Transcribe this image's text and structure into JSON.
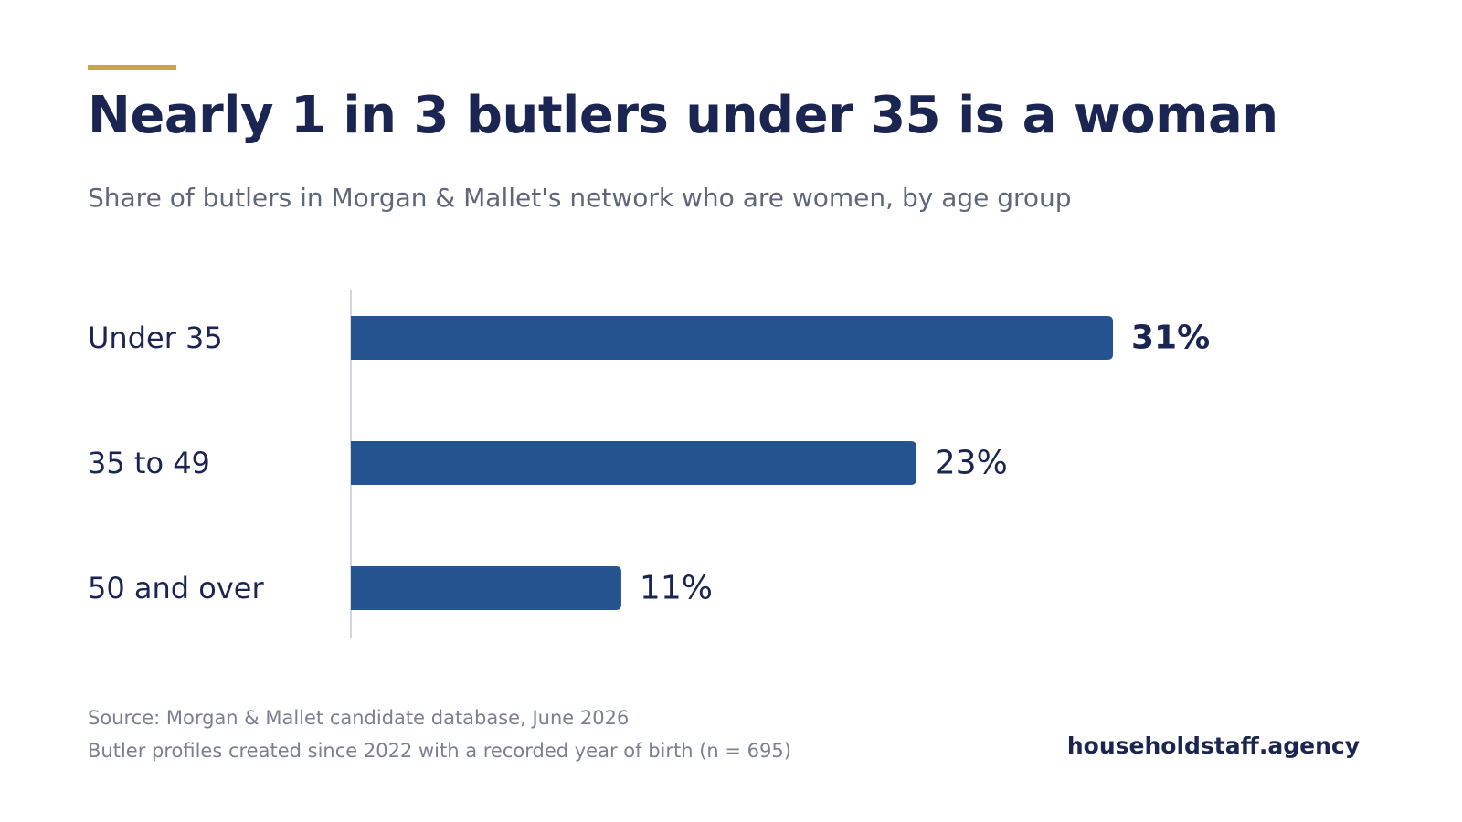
{
  "header": {
    "title": "Nearly 1 in 3 butlers under 35 is a woman",
    "subtitle": "Share of butlers in Morgan & Mallet's network who are women, by age group"
  },
  "chart_data": {
    "type": "bar",
    "orientation": "horizontal",
    "categories": [
      "Under 35",
      "35 to 49",
      "50 and over"
    ],
    "values": [
      31,
      23,
      11
    ],
    "value_labels": [
      "31%",
      "23%",
      "11%"
    ],
    "unit": "%",
    "xlim": [
      0,
      31
    ],
    "grid": false,
    "legend": "none",
    "highlight_index": 0
  },
  "footer": {
    "source_line1": "Source: Morgan & Mallet candidate database, June 2026",
    "source_line2": "Butler profiles created since 2022 with a recorded year of birth (n = 695)",
    "brand": "householdstaff.agency"
  },
  "colors": {
    "accent": "#c9a449",
    "bar": "#24538f",
    "text_dark": "#1b2551",
    "text_muted": "#5f6679",
    "axis": "#d4d6db"
  }
}
